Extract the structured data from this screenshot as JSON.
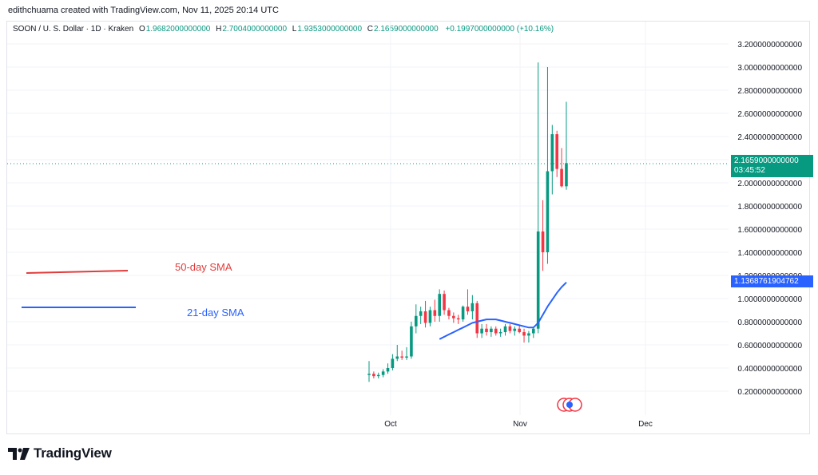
{
  "header": {
    "creator": "edithchuama created with TradingView.com, Nov 11, 2025 20:14 UTC"
  },
  "legend": {
    "symbol": "SOON / U. S. Dollar · 1D · Kraken",
    "open_label": "O",
    "open": "1.9682000000000",
    "high_label": "H",
    "high": "2.7004000000000",
    "low_label": "L",
    "low": "1.9353000000000",
    "close_label": "C",
    "close": "2.1659000000000",
    "change": "+0.1997000000000 (+10.16%)"
  },
  "price_tag": {
    "price": "2.1659000000000",
    "countdown": "03:45:52"
  },
  "sma_tag": {
    "value": "1.1368761904762"
  },
  "annotations": {
    "sma50": "50-day SMA",
    "sma21": "21-day SMA"
  },
  "brand": {
    "name": "TradingView"
  },
  "colors": {
    "up": "#089981",
    "down": "#f23645",
    "sma21": "#2962ff",
    "sma50": "#e03c3c",
    "grid": "#f0f3fa"
  },
  "chart_data": {
    "type": "candlestick",
    "title": "SOON / U. S. Dollar · 1D · Kraken",
    "y_ticks": [
      "0.2000000000000",
      "0.4000000000000",
      "0.6000000000000",
      "0.8000000000000",
      "1.0000000000000",
      "1.2000000000000",
      "1.4000000000000",
      "1.6000000000000",
      "1.8000000000000",
      "2.0000000000000",
      "2.2000000000000",
      "2.4000000000000",
      "2.6000000000000",
      "2.8000000000000",
      "3.0000000000000",
      "3.2000000000000"
    ],
    "x_ticks": [
      "Oct",
      "Nov",
      "Dec"
    ],
    "ylim": [
      0.0,
      3.3
    ],
    "grid": true,
    "candles": [
      {
        "o": 0.34,
        "h": 0.46,
        "l": 0.28,
        "c": 0.35
      },
      {
        "o": 0.35,
        "h": 0.37,
        "l": 0.31,
        "c": 0.33
      },
      {
        "o": 0.33,
        "h": 0.36,
        "l": 0.31,
        "c": 0.34
      },
      {
        "o": 0.34,
        "h": 0.39,
        "l": 0.32,
        "c": 0.37
      },
      {
        "o": 0.37,
        "h": 0.44,
        "l": 0.35,
        "c": 0.4
      },
      {
        "o": 0.4,
        "h": 0.52,
        "l": 0.38,
        "c": 0.48
      },
      {
        "o": 0.48,
        "h": 0.6,
        "l": 0.46,
        "c": 0.5
      },
      {
        "o": 0.5,
        "h": 0.55,
        "l": 0.47,
        "c": 0.49
      },
      {
        "o": 0.49,
        "h": 0.58,
        "l": 0.47,
        "c": 0.5
      },
      {
        "o": 0.5,
        "h": 0.8,
        "l": 0.48,
        "c": 0.76
      },
      {
        "o": 0.76,
        "h": 0.95,
        "l": 0.7,
        "c": 0.85
      },
      {
        "o": 0.85,
        "h": 0.93,
        "l": 0.78,
        "c": 0.89
      },
      {
        "o": 0.89,
        "h": 0.98,
        "l": 0.75,
        "c": 0.79
      },
      {
        "o": 0.79,
        "h": 0.93,
        "l": 0.76,
        "c": 0.9
      },
      {
        "o": 0.9,
        "h": 0.99,
        "l": 0.8,
        "c": 0.85
      },
      {
        "o": 0.85,
        "h": 1.08,
        "l": 0.8,
        "c": 1.04
      },
      {
        "o": 1.04,
        "h": 1.07,
        "l": 0.86,
        "c": 0.9
      },
      {
        "o": 0.9,
        "h": 0.92,
        "l": 0.82,
        "c": 0.85
      },
      {
        "o": 0.85,
        "h": 0.88,
        "l": 0.79,
        "c": 0.83
      },
      {
        "o": 0.83,
        "h": 0.86,
        "l": 0.78,
        "c": 0.82
      },
      {
        "o": 0.82,
        "h": 0.94,
        "l": 0.8,
        "c": 0.93
      },
      {
        "o": 0.93,
        "h": 1.08,
        "l": 0.86,
        "c": 0.89
      },
      {
        "o": 0.89,
        "h": 1.03,
        "l": 0.82,
        "c": 0.96
      },
      {
        "o": 0.96,
        "h": 0.98,
        "l": 0.66,
        "c": 0.7
      },
      {
        "o": 0.7,
        "h": 0.78,
        "l": 0.66,
        "c": 0.74
      },
      {
        "o": 0.74,
        "h": 0.78,
        "l": 0.68,
        "c": 0.71
      },
      {
        "o": 0.71,
        "h": 0.76,
        "l": 0.67,
        "c": 0.74
      },
      {
        "o": 0.74,
        "h": 0.76,
        "l": 0.68,
        "c": 0.7
      },
      {
        "o": 0.7,
        "h": 0.74,
        "l": 0.67,
        "c": 0.71
      },
      {
        "o": 0.71,
        "h": 0.78,
        "l": 0.68,
        "c": 0.76
      },
      {
        "o": 0.76,
        "h": 0.78,
        "l": 0.7,
        "c": 0.72
      },
      {
        "o": 0.72,
        "h": 0.76,
        "l": 0.68,
        "c": 0.74
      },
      {
        "o": 0.74,
        "h": 0.77,
        "l": 0.7,
        "c": 0.71
      },
      {
        "o": 0.71,
        "h": 0.74,
        "l": 0.62,
        "c": 0.68
      },
      {
        "o": 0.68,
        "h": 0.72,
        "l": 0.62,
        "c": 0.7
      },
      {
        "o": 0.7,
        "h": 0.75,
        "l": 0.66,
        "c": 0.74
      },
      {
        "o": 0.74,
        "h": 3.04,
        "l": 0.7,
        "c": 1.58
      },
      {
        "o": 1.58,
        "h": 1.85,
        "l": 1.24,
        "c": 1.4
      },
      {
        "o": 1.4,
        "h": 3.0,
        "l": 1.3,
        "c": 2.1
      },
      {
        "o": 2.1,
        "h": 2.5,
        "l": 1.9,
        "c": 2.42
      },
      {
        "o": 2.42,
        "h": 2.45,
        "l": 2.05,
        "c": 2.12
      },
      {
        "o": 2.12,
        "h": 2.3,
        "l": 1.96,
        "c": 1.97
      },
      {
        "o": 1.97,
        "h": 2.7,
        "l": 1.94,
        "c": 2.17
      }
    ],
    "sma21": {
      "name": "21-day SMA",
      "start_index": 15,
      "values": [
        0.65,
        0.67,
        0.69,
        0.71,
        0.73,
        0.75,
        0.77,
        0.79,
        0.8,
        0.81,
        0.82,
        0.82,
        0.82,
        0.81,
        0.8,
        0.79,
        0.78,
        0.77,
        0.76,
        0.75,
        0.75,
        0.79,
        0.86,
        0.93,
        0.99,
        1.05,
        1.1,
        1.14
      ]
    },
    "last_price": 2.1659
  }
}
